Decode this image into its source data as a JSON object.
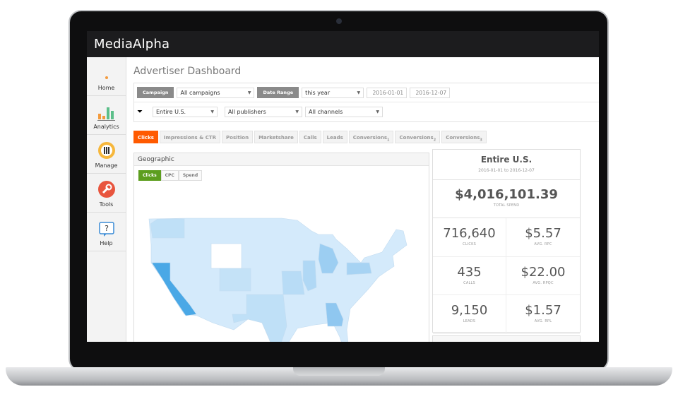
{
  "app": {
    "brand": "MediaAlpha"
  },
  "sidebar": {
    "items": [
      {
        "label": "Home",
        "icon": "home-dot-icon"
      },
      {
        "label": "Analytics",
        "icon": "bar-chart-icon"
      },
      {
        "label": "Manage",
        "icon": "sliders-icon"
      },
      {
        "label": "Tools",
        "icon": "wrench-icon"
      },
      {
        "label": "Help",
        "icon": "help-icon"
      }
    ]
  },
  "page": {
    "title": "Advertiser Dashboard"
  },
  "filters": {
    "campaign_label": "Campaign",
    "campaign_value": "All campaigns",
    "date_label": "Date Range",
    "date_value": "this year",
    "start_date": "2016-01-01",
    "end_date": "2016-12-07",
    "region_value": "Entire U.S.",
    "publisher_value": "All publishers",
    "channel_value": "All channels"
  },
  "tabs": [
    {
      "label": "Clicks",
      "active": true
    },
    {
      "label": "Impressions & CTR"
    },
    {
      "label": "Position"
    },
    {
      "label": "Marketshare"
    },
    {
      "label": "Calls"
    },
    {
      "label": "Leads"
    },
    {
      "label": "Conversions",
      "sub": "1"
    },
    {
      "label": "Conversions",
      "sub": "2"
    },
    {
      "label": "Conversions",
      "sub": "3"
    }
  ],
  "geographic": {
    "title": "Geographic",
    "metric_tabs": [
      "Clicks",
      "CPC",
      "Spend"
    ],
    "active_metric": "Clicks",
    "colors": {
      "low": "#d4eafb",
      "mid": "#bfe0f7",
      "high": "#4aa8e6",
      "none": "#ffffff"
    }
  },
  "summary": {
    "title": "Entire U.S.",
    "date_range": "2016-01-01 to 2016-12-07",
    "total_spend": "$4,016,101.39",
    "total_spend_label": "TOTAL SPEND",
    "metrics": [
      {
        "value": "716,640",
        "label": "CLICKS"
      },
      {
        "value": "$5.57",
        "label": "AVG. RPC"
      },
      {
        "value": "435",
        "label": "CALLS"
      },
      {
        "value": "$22.00",
        "label": "AVG. RPQC"
      },
      {
        "value": "9,150",
        "label": "LEADS"
      },
      {
        "value": "$1.57",
        "label": "AVG. RPL"
      }
    ]
  },
  "colors": {
    "accent": "#ff5a00",
    "green": "#5c9e1e",
    "topbar": "#1c1c1e"
  }
}
